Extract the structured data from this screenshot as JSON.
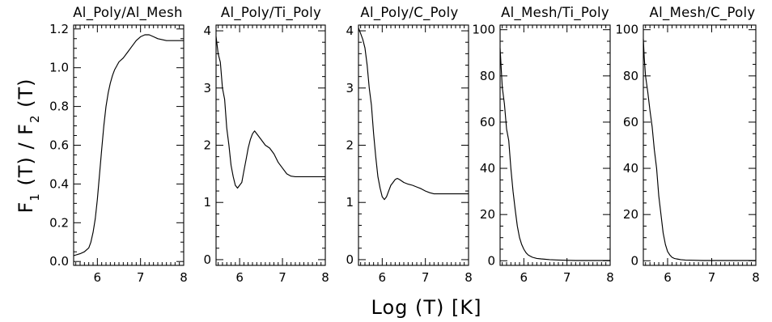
{
  "figure": {
    "xlabel": "Log (T) [K]",
    "ylabel": {
      "p1": "F",
      "s1": "1",
      "p2": " (T) / F",
      "s2": "2",
      "p3": " (T)"
    }
  },
  "chart_data": [
    {
      "type": "line",
      "title": "Al_Poly/Al_Mesh",
      "xlim": [
        5.45,
        8.0
      ],
      "ylim": [
        -0.02,
        1.22
      ],
      "xticks": [
        6,
        7,
        8
      ],
      "yticks": [
        0.0,
        0.2,
        0.4,
        0.6,
        0.8,
        1.0,
        1.2
      ],
      "ytick_labels": [
        "0.0",
        "0.2",
        "0.4",
        "0.6",
        "0.8",
        "1.0",
        "1.2"
      ],
      "grid": false,
      "series": [
        {
          "x": [
            5.45,
            5.6,
            5.7,
            5.8,
            5.85,
            5.9,
            5.95,
            6.0,
            6.05,
            6.1,
            6.15,
            6.2,
            6.25,
            6.3,
            6.35,
            6.4,
            6.5,
            6.6,
            6.7,
            6.8,
            6.9,
            7.0,
            7.1,
            7.2,
            7.3,
            7.4,
            7.6,
            7.8,
            8.0
          ],
          "values": [
            0.03,
            0.04,
            0.05,
            0.07,
            0.1,
            0.15,
            0.22,
            0.32,
            0.45,
            0.58,
            0.7,
            0.8,
            0.87,
            0.92,
            0.96,
            0.99,
            1.03,
            1.05,
            1.08,
            1.11,
            1.14,
            1.16,
            1.17,
            1.17,
            1.16,
            1.15,
            1.14,
            1.14,
            1.14
          ]
        }
      ]
    },
    {
      "type": "line",
      "title": "Al_Poly/Ti_Poly",
      "xlim": [
        5.45,
        8.0
      ],
      "ylim": [
        -0.1,
        4.1
      ],
      "xticks": [
        6,
        7,
        8
      ],
      "yticks": [
        0,
        1,
        2,
        3,
        4
      ],
      "ytick_labels": [
        "0",
        "1",
        "2",
        "3",
        "4"
      ],
      "grid": false,
      "series": [
        {
          "x": [
            5.45,
            5.5,
            5.55,
            5.6,
            5.65,
            5.7,
            5.75,
            5.8,
            5.85,
            5.9,
            5.95,
            6.0,
            6.05,
            6.1,
            6.15,
            6.2,
            6.25,
            6.3,
            6.35,
            6.4,
            6.5,
            6.6,
            6.7,
            6.8,
            6.9,
            7.0,
            7.1,
            7.2,
            7.3,
            7.4,
            7.6,
            7.8,
            8.0
          ],
          "values": [
            3.9,
            3.6,
            3.45,
            3.0,
            2.8,
            2.3,
            2.0,
            1.65,
            1.45,
            1.3,
            1.25,
            1.3,
            1.35,
            1.55,
            1.75,
            1.95,
            2.1,
            2.2,
            2.25,
            2.2,
            2.1,
            2.0,
            1.95,
            1.85,
            1.7,
            1.6,
            1.5,
            1.46,
            1.45,
            1.45,
            1.45,
            1.45,
            1.45
          ]
        }
      ]
    },
    {
      "type": "line",
      "title": "Al_Poly/C_Poly",
      "xlim": [
        5.45,
        8.0
      ],
      "ylim": [
        -0.1,
        4.1
      ],
      "xticks": [
        6,
        7,
        8
      ],
      "yticks": [
        0,
        1,
        2,
        3,
        4
      ],
      "ytick_labels": [
        "0",
        "1",
        "2",
        "3",
        "4"
      ],
      "grid": false,
      "series": [
        {
          "x": [
            5.45,
            5.5,
            5.55,
            5.6,
            5.65,
            5.7,
            5.75,
            5.8,
            5.85,
            5.9,
            5.95,
            6.0,
            6.05,
            6.1,
            6.15,
            6.2,
            6.25,
            6.3,
            6.35,
            6.4,
            6.5,
            6.6,
            6.7,
            6.8,
            6.9,
            7.0,
            7.1,
            7.2,
            7.3,
            7.4,
            7.6,
            7.8,
            8.0
          ],
          "values": [
            4.05,
            3.95,
            3.85,
            3.7,
            3.4,
            3.0,
            2.7,
            2.2,
            1.8,
            1.45,
            1.25,
            1.1,
            1.05,
            1.1,
            1.2,
            1.3,
            1.35,
            1.4,
            1.42,
            1.4,
            1.35,
            1.32,
            1.3,
            1.27,
            1.24,
            1.2,
            1.17,
            1.15,
            1.15,
            1.15,
            1.15,
            1.15,
            1.15
          ]
        }
      ]
    },
    {
      "type": "line",
      "title": "Al_Mesh/Ti_Poly",
      "xlim": [
        5.45,
        8.0
      ],
      "ylim": [
        -2,
        102
      ],
      "xticks": [
        6,
        7,
        8
      ],
      "yticks": [
        0,
        20,
        40,
        60,
        80,
        100
      ],
      "ytick_labels": [
        "0",
        "20",
        "40",
        "60",
        "80",
        "100"
      ],
      "grid": false,
      "series": [
        {
          "x": [
            5.45,
            5.47,
            5.5,
            5.55,
            5.6,
            5.65,
            5.7,
            5.75,
            5.8,
            5.85,
            5.9,
            5.95,
            6.0,
            6.05,
            6.1,
            6.15,
            6.2,
            6.3,
            6.4,
            6.6,
            6.8,
            7.0,
            7.2,
            7.5,
            8.0
          ],
          "values": [
            92,
            85,
            75,
            68,
            57,
            52,
            40,
            30,
            22,
            15,
            10,
            7,
            5,
            3.5,
            2.5,
            2,
            1.5,
            1,
            0.8,
            0.5,
            0.3,
            0.2,
            0.1,
            0.1,
            0.1
          ]
        }
      ]
    },
    {
      "type": "line",
      "title": "Al_Mesh/C_Poly",
      "xlim": [
        5.45,
        8.0
      ],
      "ylim": [
        -2,
        102
      ],
      "xticks": [
        6,
        7,
        8
      ],
      "yticks": [
        0,
        20,
        40,
        60,
        80,
        100
      ],
      "ytick_labels": [
        "0",
        "20",
        "40",
        "60",
        "80",
        "100"
      ],
      "grid": false,
      "series": [
        {
          "x": [
            5.45,
            5.47,
            5.5,
            5.55,
            5.6,
            5.65,
            5.7,
            5.75,
            5.8,
            5.85,
            5.9,
            5.95,
            6.0,
            6.05,
            6.1,
            6.15,
            6.2,
            6.3,
            6.4,
            6.6,
            6.8,
            7.0,
            7.2,
            7.5,
            8.0
          ],
          "values": [
            96,
            88,
            80,
            73,
            65,
            58,
            48,
            40,
            28,
            20,
            12,
            7,
            4,
            2.5,
            1.5,
            1,
            0.8,
            0.5,
            0.3,
            0.2,
            0.1,
            0.1,
            0.1,
            0.1,
            0.1
          ]
        }
      ]
    }
  ]
}
